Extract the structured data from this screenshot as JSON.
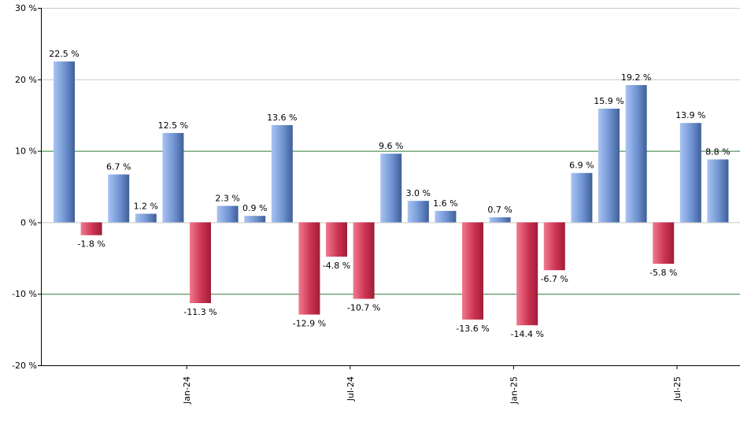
{
  "chart_data": {
    "type": "bar",
    "title": "",
    "xlabel": "",
    "ylabel": "",
    "ylim": [
      -20,
      30
    ],
    "y_ticks": [
      30,
      20,
      10,
      0,
      -10,
      -20
    ],
    "y_tick_labels": [
      "30 %",
      "20 %",
      "10 %",
      "0 %",
      "-10 %",
      "-20 %"
    ],
    "value_suffix": " %",
    "x_ticks": [
      {
        "label": "Jan-24",
        "after_index": 4
      },
      {
        "label": "Jul-24",
        "after_index": 10
      },
      {
        "label": "Jan-25",
        "after_index": 16
      },
      {
        "label": "Jul-25",
        "after_index": 22
      }
    ],
    "values": [
      22.5,
      -1.8,
      6.7,
      1.2,
      12.5,
      -11.3,
      2.3,
      0.9,
      13.6,
      -12.9,
      -4.8,
      -10.7,
      9.6,
      3.0,
      1.6,
      -13.6,
      0.7,
      -14.4,
      -6.7,
      6.9,
      15.9,
      19.2,
      -5.8,
      13.9,
      8.8
    ],
    "value_labels": [
      "22.5 %",
      "-1.8 %",
      "6.7 %",
      "1.2 %",
      "12.5 %",
      "-11.3 %",
      "2.3 %",
      "0.9 %",
      "13.6 %",
      "-12.9 %",
      "-4.8 %",
      "-10.7 %",
      "9.6 %",
      "3.0 %",
      "1.6 %",
      "-13.6 %",
      "0.7 %",
      "-14.4 %",
      "-6.7 %",
      "6.9 %",
      "15.9 %",
      "19.2 %",
      "-5.8 %",
      "13.9 %",
      "8.8 %"
    ],
    "colors": {
      "positive_light": "#a9c4f2",
      "positive_dark": "#3f5f97",
      "negative_light": "#f07a90",
      "negative_dark": "#a01d39",
      "gridline": "#c8c8c8",
      "reference_line": "#2e7d32",
      "axis": "#000000"
    },
    "reference_lines": [
      10,
      -10
    ]
  }
}
